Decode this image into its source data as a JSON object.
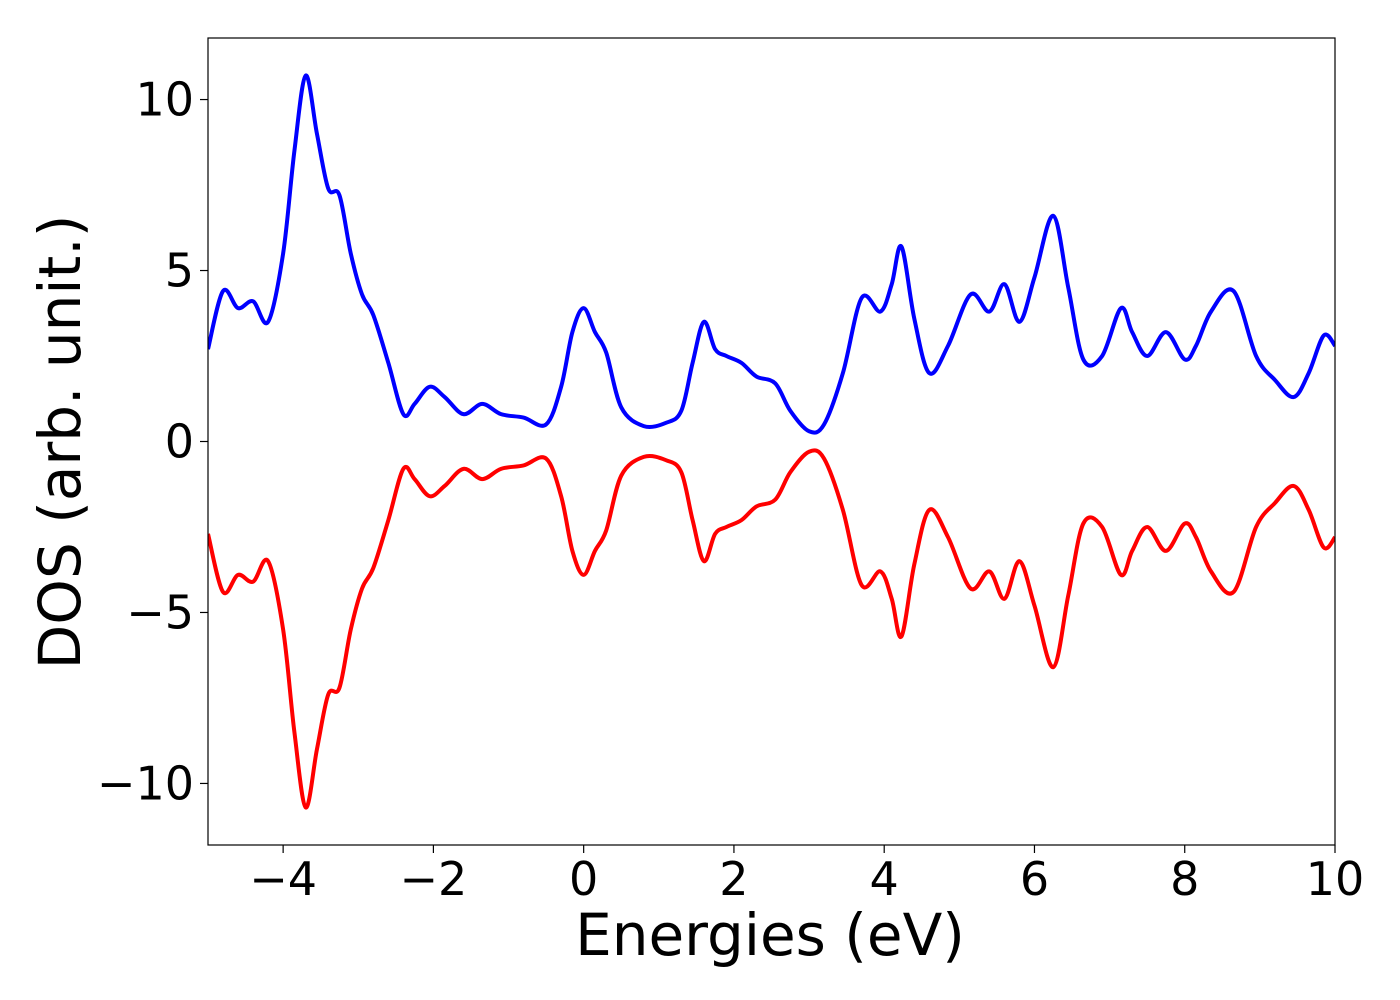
{
  "chart_data": {
    "type": "line",
    "x_label": "Energies (eV)",
    "y_label": "DOS (arb. unit.)",
    "x": [
      -5,
      -4.8,
      -4.6,
      -4.4,
      -4.2,
      -4.0,
      -3.85,
      -3.7,
      -3.55,
      -3.4,
      -3.25,
      -3.1,
      -2.95,
      -2.8,
      -2.6,
      -2.4,
      -2.25,
      -2.05,
      -1.85,
      -1.6,
      -1.35,
      -1.1,
      -0.8,
      -0.5,
      -0.3,
      -0.15,
      0.0,
      0.15,
      0.3,
      0.5,
      0.8,
      1.1,
      1.3,
      1.45,
      1.6,
      1.75,
      1.9,
      2.1,
      2.3,
      2.55,
      2.75,
      3.0,
      3.2,
      3.45,
      3.7,
      3.95,
      4.1,
      4.23,
      4.4,
      4.6,
      4.85,
      5.15,
      5.4,
      5.6,
      5.8,
      6.0,
      6.25,
      6.45,
      6.65,
      6.9,
      7.15,
      7.3,
      7.5,
      7.75,
      8.0,
      8.15,
      8.35,
      8.65,
      8.95,
      9.2,
      9.45,
      9.65,
      9.85,
      10.0
    ],
    "series": [
      {
        "color": "#0000ff",
        "values": [
          2.7,
          4.4,
          3.9,
          4.1,
          3.5,
          5.5,
          8.5,
          10.7,
          9.0,
          7.4,
          7.2,
          5.5,
          4.3,
          3.7,
          2.3,
          0.8,
          1.1,
          1.6,
          1.3,
          0.8,
          1.1,
          0.8,
          0.7,
          0.5,
          1.6,
          3.2,
          3.9,
          3.2,
          2.6,
          1.0,
          0.45,
          0.55,
          0.9,
          2.3,
          3.5,
          2.7,
          2.5,
          2.3,
          1.9,
          1.7,
          0.9,
          0.3,
          0.5,
          2.0,
          4.2,
          3.8,
          4.6,
          5.7,
          3.6,
          2.0,
          2.8,
          4.3,
          3.8,
          4.6,
          3.5,
          4.8,
          6.6,
          4.5,
          2.4,
          2.5,
          3.9,
          3.2,
          2.5,
          3.2,
          2.4,
          2.8,
          3.8,
          4.4,
          2.5,
          1.8,
          1.3,
          2.0,
          3.1,
          2.8
        ]
      },
      {
        "color": "#ff0000",
        "values": [
          -2.7,
          -4.4,
          -3.9,
          -4.1,
          -3.5,
          -5.5,
          -8.5,
          -10.7,
          -9.0,
          -7.4,
          -7.2,
          -5.5,
          -4.3,
          -3.7,
          -2.3,
          -0.8,
          -1.1,
          -1.6,
          -1.3,
          -0.8,
          -1.1,
          -0.8,
          -0.7,
          -0.5,
          -1.6,
          -3.2,
          -3.9,
          -3.2,
          -2.6,
          -1.0,
          -0.45,
          -0.55,
          -0.9,
          -2.3,
          -3.5,
          -2.7,
          -2.5,
          -2.3,
          -1.9,
          -1.7,
          -0.9,
          -0.3,
          -0.5,
          -2.0,
          -4.2,
          -3.8,
          -4.6,
          -5.7,
          -3.6,
          -2.0,
          -2.8,
          -4.3,
          -3.8,
          -4.6,
          -3.5,
          -4.8,
          -6.6,
          -4.5,
          -2.4,
          -2.5,
          -3.9,
          -3.2,
          -2.5,
          -3.2,
          -2.4,
          -2.8,
          -3.8,
          -4.4,
          -2.5,
          -1.8,
          -1.3,
          -2.0,
          -3.1,
          -2.8
        ]
      }
    ],
    "xlim": [
      -5,
      10
    ],
    "xticks": [
      {
        "value": -4,
        "label": "−4"
      },
      {
        "value": -2,
        "label": "−2"
      },
      0,
      2,
      4,
      6,
      8,
      10
    ],
    "ylim": [
      -11.8,
      11.8
    ],
    "yticks": [
      {
        "value": -10,
        "label": "−10"
      },
      {
        "value": -5,
        "label": "−5"
      },
      0,
      5,
      10
    ]
  }
}
